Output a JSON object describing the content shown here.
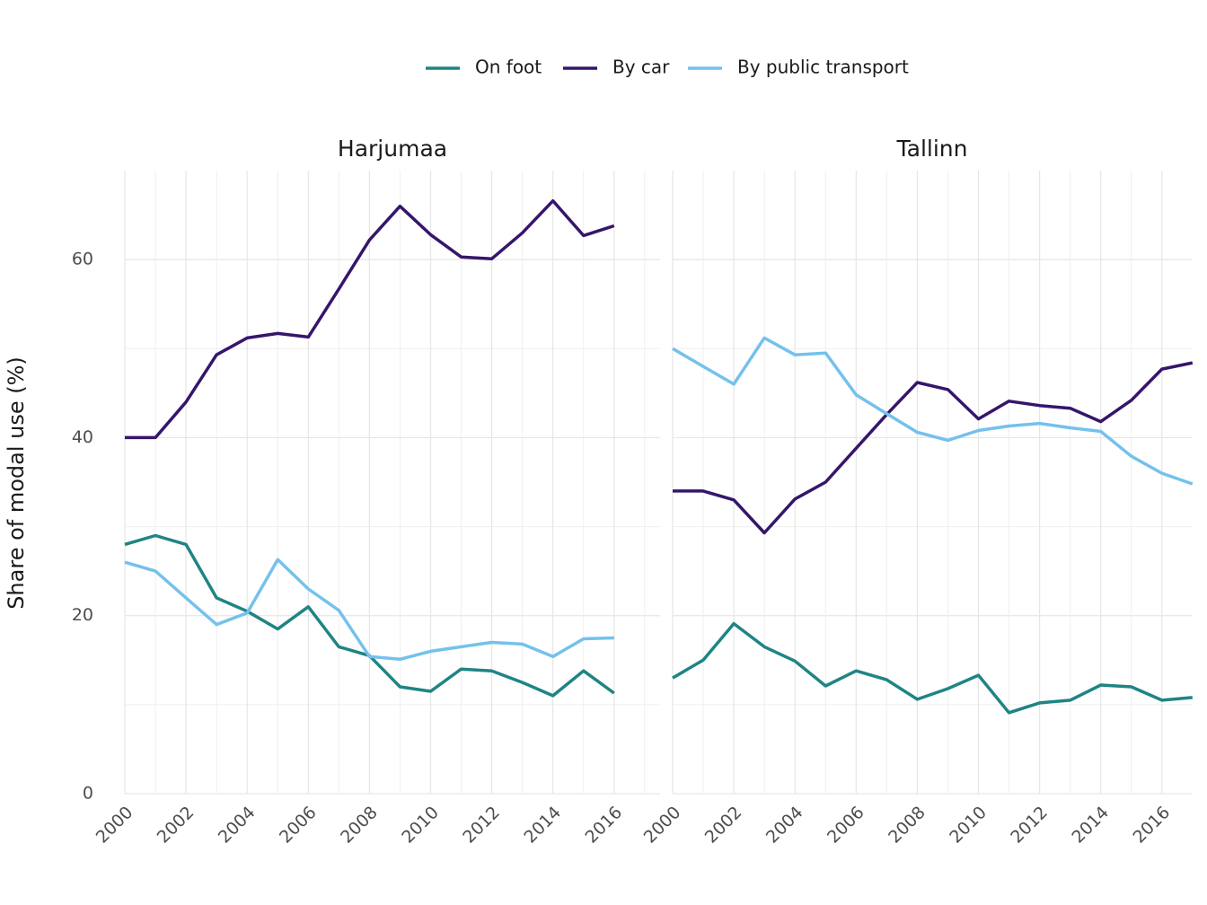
{
  "chart_data": {
    "type": "line",
    "ylabel": "Share of modal use (%)",
    "xlabel": "",
    "ylim": [
      0,
      70
    ],
    "y_ticks": [
      0,
      20,
      40,
      60
    ],
    "xlim": [
      2000,
      2017
    ],
    "x_ticks": [
      2000,
      2002,
      2004,
      2006,
      2008,
      2010,
      2012,
      2014,
      2016
    ],
    "legend_position": "top",
    "grid": true,
    "series_styles": [
      {
        "name": "On foot",
        "color": "#1f8484"
      },
      {
        "name": "By car",
        "color": "#35166b"
      },
      {
        "name": "By public transport",
        "color": "#74c1ec"
      }
    ],
    "panels": [
      {
        "title": "Harjumaa",
        "x": [
          2000,
          2001,
          2002,
          2003,
          2004,
          2005,
          2006,
          2007,
          2008,
          2009,
          2010,
          2011,
          2012,
          2013,
          2014,
          2015,
          2016
        ],
        "series": [
          {
            "name": "On foot",
            "values": [
              28,
              29,
              28,
              22,
              20.5,
              18.5,
              21,
              16.5,
              15.5,
              12,
              11.5,
              14,
              13.8,
              12.5,
              11,
              13.8,
              11.3
            ]
          },
          {
            "name": "By car",
            "values": [
              40,
              40,
              44,
              49.3,
              51.2,
              51.7,
              51.3,
              56.7,
              62.2,
              66,
              62.8,
              60.3,
              60.1,
              63,
              66.6,
              62.7,
              63.8
            ]
          },
          {
            "name": "By public transport",
            "values": [
              26,
              25,
              22,
              19,
              20.3,
              26.3,
              23,
              20.6,
              15.4,
              15.1,
              16,
              16.5,
              17,
              16.8,
              15.4,
              17.4,
              17.5
            ]
          }
        ]
      },
      {
        "title": "Tallinn",
        "x": [
          2000,
          2001,
          2002,
          2003,
          2004,
          2005,
          2006,
          2007,
          2008,
          2009,
          2010,
          2011,
          2012,
          2013,
          2014,
          2015,
          2016,
          2017
        ],
        "series": [
          {
            "name": "On foot",
            "values": [
              13,
              15,
              19.1,
              16.5,
              14.9,
              12.1,
              13.8,
              12.8,
              10.6,
              11.8,
              13.3,
              9.1,
              10.2,
              10.5,
              12.2,
              12,
              10.5,
              10.8
            ]
          },
          {
            "name": "By car",
            "values": [
              34,
              34,
              33,
              29.3,
              33.1,
              35,
              38.8,
              42.6,
              46.2,
              45.4,
              42.1,
              44.1,
              43.6,
              43.3,
              41.8,
              44.2,
              47.7,
              48.4
            ]
          },
          {
            "name": "By public transport",
            "values": [
              50,
              48,
              46,
              51.2,
              49.3,
              49.5,
              44.8,
              42.7,
              40.6,
              39.7,
              40.8,
              41.3,
              41.6,
              41.1,
              40.7,
              37.9,
              36,
              34.8
            ]
          }
        ]
      }
    ]
  }
}
